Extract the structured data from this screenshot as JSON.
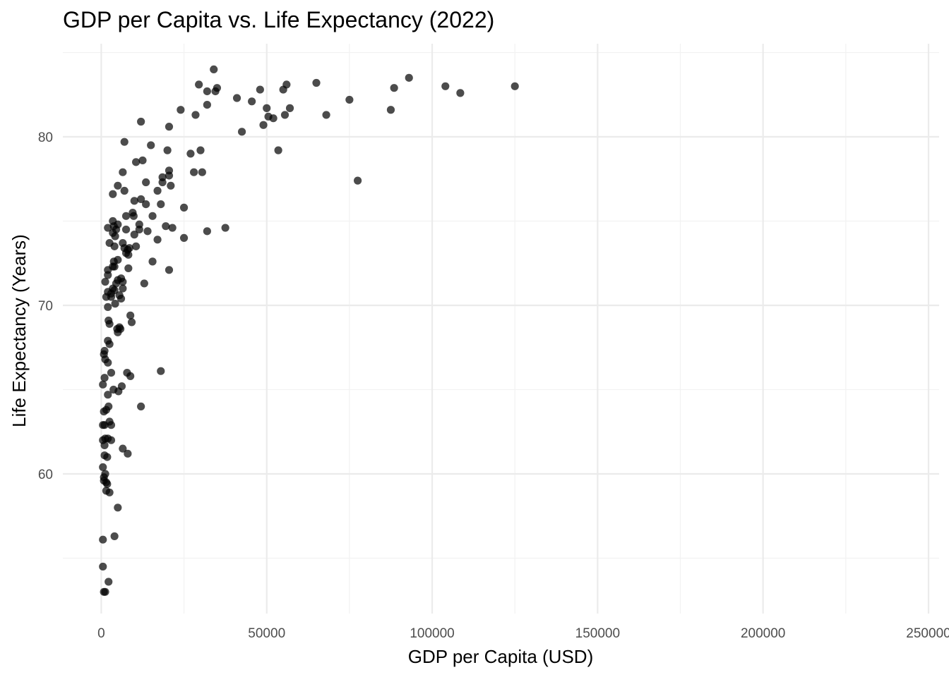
{
  "chart_data": {
    "type": "scatter",
    "title": "GDP per Capita vs. Life Expectancy (2022)",
    "xlabel": "GDP per Capita (USD)",
    "ylabel": "Life Expectancy (Years)",
    "xlim": [
      -12000,
      252000
    ],
    "ylim": [
      51.5,
      85.5
    ],
    "x_ticks": [
      0,
      50000,
      100000,
      150000,
      200000,
      250000
    ],
    "x_tick_labels": [
      "0",
      "50000",
      "100000",
      "150000",
      "200000",
      "250000"
    ],
    "y_ticks": [
      60,
      70,
      80
    ],
    "y_tick_labels": [
      "60",
      "70",
      "80"
    ],
    "grid": true,
    "legend": "none",
    "point_color": "#000000",
    "point_opacity": 0.7,
    "points": [
      {
        "x": 34000,
        "y": 84.0
      },
      {
        "x": 29500,
        "y": 83.1
      },
      {
        "x": 32000,
        "y": 82.7
      },
      {
        "x": 35000,
        "y": 82.9
      },
      {
        "x": 34500,
        "y": 82.7
      },
      {
        "x": 41000,
        "y": 82.3
      },
      {
        "x": 45500,
        "y": 82.1
      },
      {
        "x": 48000,
        "y": 82.8
      },
      {
        "x": 50000,
        "y": 81.7
      },
      {
        "x": 55000,
        "y": 82.8
      },
      {
        "x": 56000,
        "y": 83.1
      },
      {
        "x": 65000,
        "y": 83.2
      },
      {
        "x": 75000,
        "y": 82.2
      },
      {
        "x": 88500,
        "y": 82.9
      },
      {
        "x": 93000,
        "y": 83.5
      },
      {
        "x": 104000,
        "y": 83.0
      },
      {
        "x": 108500,
        "y": 82.6
      },
      {
        "x": 125000,
        "y": 83.0
      },
      {
        "x": 32000,
        "y": 81.9
      },
      {
        "x": 24000,
        "y": 81.6
      },
      {
        "x": 28500,
        "y": 81.3
      },
      {
        "x": 50500,
        "y": 81.2
      },
      {
        "x": 52000,
        "y": 81.1
      },
      {
        "x": 55500,
        "y": 81.3
      },
      {
        "x": 57000,
        "y": 81.7
      },
      {
        "x": 68000,
        "y": 81.3
      },
      {
        "x": 87500,
        "y": 81.6
      },
      {
        "x": 49000,
        "y": 80.7
      },
      {
        "x": 42500,
        "y": 80.3
      },
      {
        "x": 12000,
        "y": 80.9
      },
      {
        "x": 20500,
        "y": 80.6
      },
      {
        "x": 7000,
        "y": 79.7
      },
      {
        "x": 15000,
        "y": 79.5
      },
      {
        "x": 20000,
        "y": 79.2
      },
      {
        "x": 27000,
        "y": 79.0
      },
      {
        "x": 30000,
        "y": 79.2
      },
      {
        "x": 53500,
        "y": 79.2
      },
      {
        "x": 10500,
        "y": 78.5
      },
      {
        "x": 12500,
        "y": 78.6
      },
      {
        "x": 6500,
        "y": 77.9
      },
      {
        "x": 20500,
        "y": 78.0
      },
      {
        "x": 28000,
        "y": 77.9
      },
      {
        "x": 30500,
        "y": 77.9
      },
      {
        "x": 77500,
        "y": 77.4
      },
      {
        "x": 18500,
        "y": 77.6
      },
      {
        "x": 13500,
        "y": 77.3
      },
      {
        "x": 18500,
        "y": 77.3
      },
      {
        "x": 20500,
        "y": 77.7
      },
      {
        "x": 5000,
        "y": 77.1
      },
      {
        "x": 21000,
        "y": 77.1
      },
      {
        "x": 3500,
        "y": 76.6
      },
      {
        "x": 7000,
        "y": 76.8
      },
      {
        "x": 17000,
        "y": 76.8
      },
      {
        "x": 10000,
        "y": 76.2
      },
      {
        "x": 12000,
        "y": 76.3
      },
      {
        "x": 13500,
        "y": 76.0
      },
      {
        "x": 18000,
        "y": 76.0
      },
      {
        "x": 25000,
        "y": 75.8
      },
      {
        "x": 9500,
        "y": 75.5
      },
      {
        "x": 7500,
        "y": 75.3
      },
      {
        "x": 9800,
        "y": 75.3
      },
      {
        "x": 15500,
        "y": 75.3
      },
      {
        "x": 3500,
        "y": 75.0
      },
      {
        "x": 5000,
        "y": 74.8
      },
      {
        "x": 11500,
        "y": 74.8
      },
      {
        "x": 19500,
        "y": 74.7
      },
      {
        "x": 2000,
        "y": 74.6
      },
      {
        "x": 3800,
        "y": 74.7
      },
      {
        "x": 4500,
        "y": 74.5
      },
      {
        "x": 7500,
        "y": 74.5
      },
      {
        "x": 11500,
        "y": 74.5
      },
      {
        "x": 14000,
        "y": 74.4
      },
      {
        "x": 21500,
        "y": 74.6
      },
      {
        "x": 32000,
        "y": 74.4
      },
      {
        "x": 37500,
        "y": 74.6
      },
      {
        "x": 3500,
        "y": 74.3
      },
      {
        "x": 4200,
        "y": 74.1
      },
      {
        "x": 10000,
        "y": 74.2
      },
      {
        "x": 17000,
        "y": 73.9
      },
      {
        "x": 25000,
        "y": 74.0
      },
      {
        "x": 2500,
        "y": 73.7
      },
      {
        "x": 4000,
        "y": 73.5
      },
      {
        "x": 6500,
        "y": 73.7
      },
      {
        "x": 7000,
        "y": 73.4
      },
      {
        "x": 8000,
        "y": 73.3
      },
      {
        "x": 10500,
        "y": 73.5
      },
      {
        "x": 7500,
        "y": 73.1
      },
      {
        "x": 8500,
        "y": 73.4
      },
      {
        "x": 8200,
        "y": 73.0
      },
      {
        "x": 5000,
        "y": 72.7
      },
      {
        "x": 3800,
        "y": 72.6
      },
      {
        "x": 15500,
        "y": 72.6
      },
      {
        "x": 2000,
        "y": 72.1
      },
      {
        "x": 3500,
        "y": 72.3
      },
      {
        "x": 4000,
        "y": 72.3
      },
      {
        "x": 8200,
        "y": 72.2
      },
      {
        "x": 20500,
        "y": 72.1
      },
      {
        "x": 2000,
        "y": 71.8
      },
      {
        "x": 5000,
        "y": 71.5
      },
      {
        "x": 6000,
        "y": 71.6
      },
      {
        "x": 6500,
        "y": 71.4
      },
      {
        "x": 1200,
        "y": 71.4
      },
      {
        "x": 4500,
        "y": 71.3
      },
      {
        "x": 13000,
        "y": 71.3
      },
      {
        "x": 3500,
        "y": 71.0
      },
      {
        "x": 6500,
        "y": 71.0
      },
      {
        "x": 2000,
        "y": 70.8
      },
      {
        "x": 3000,
        "y": 70.7
      },
      {
        "x": 4000,
        "y": 70.9
      },
      {
        "x": 5500,
        "y": 70.6
      },
      {
        "x": 1500,
        "y": 70.5
      },
      {
        "x": 3000,
        "y": 70.5
      },
      {
        "x": 6000,
        "y": 70.4
      },
      {
        "x": 4200,
        "y": 70.1
      },
      {
        "x": 2000,
        "y": 69.9
      },
      {
        "x": 8800,
        "y": 69.4
      },
      {
        "x": 2200,
        "y": 69.1
      },
      {
        "x": 2500,
        "y": 68.9
      },
      {
        "x": 9200,
        "y": 69.0
      },
      {
        "x": 4800,
        "y": 68.6
      },
      {
        "x": 5500,
        "y": 68.7
      },
      {
        "x": 5000,
        "y": 68.4
      },
      {
        "x": 5800,
        "y": 68.6
      },
      {
        "x": 2000,
        "y": 67.9
      },
      {
        "x": 2500,
        "y": 67.7
      },
      {
        "x": 1000,
        "y": 67.3
      },
      {
        "x": 800,
        "y": 67.1
      },
      {
        "x": 1200,
        "y": 66.8
      },
      {
        "x": 2000,
        "y": 66.6
      },
      {
        "x": 3000,
        "y": 66.0
      },
      {
        "x": 7800,
        "y": 66.0
      },
      {
        "x": 8800,
        "y": 65.8
      },
      {
        "x": 18000,
        "y": 66.1
      },
      {
        "x": 1000,
        "y": 65.7
      },
      {
        "x": 500,
        "y": 65.3
      },
      {
        "x": 6200,
        "y": 65.2
      },
      {
        "x": 3700,
        "y": 65.0
      },
      {
        "x": 5200,
        "y": 64.9
      },
      {
        "x": 2000,
        "y": 64.7
      },
      {
        "x": 12000,
        "y": 64.0
      },
      {
        "x": 2200,
        "y": 64.0
      },
      {
        "x": 800,
        "y": 63.7
      },
      {
        "x": 1500,
        "y": 63.8
      },
      {
        "x": 2500,
        "y": 63.1
      },
      {
        "x": 3000,
        "y": 62.9
      },
      {
        "x": 500,
        "y": 62.9
      },
      {
        "x": 1000,
        "y": 62.9
      },
      {
        "x": 500,
        "y": 62.0
      },
      {
        "x": 1200,
        "y": 62.1
      },
      {
        "x": 2000,
        "y": 62.1
      },
      {
        "x": 3000,
        "y": 62.0
      },
      {
        "x": 1000,
        "y": 61.7
      },
      {
        "x": 6500,
        "y": 61.5
      },
      {
        "x": 8000,
        "y": 61.2
      },
      {
        "x": 1000,
        "y": 61.1
      },
      {
        "x": 1800,
        "y": 61.0
      },
      {
        "x": 500,
        "y": 60.4
      },
      {
        "x": 1200,
        "y": 60.0
      },
      {
        "x": 800,
        "y": 59.8
      },
      {
        "x": 800,
        "y": 59.6
      },
      {
        "x": 1500,
        "y": 59.5
      },
      {
        "x": 1800,
        "y": 59.4
      },
      {
        "x": 1500,
        "y": 59.0
      },
      {
        "x": 2500,
        "y": 58.9
      },
      {
        "x": 5000,
        "y": 58.0
      },
      {
        "x": 4000,
        "y": 56.3
      },
      {
        "x": 500,
        "y": 56.1
      },
      {
        "x": 500,
        "y": 54.5
      },
      {
        "x": 2200,
        "y": 53.6
      },
      {
        "x": 800,
        "y": 53.0
      },
      {
        "x": 1200,
        "y": 53.0
      }
    ]
  }
}
